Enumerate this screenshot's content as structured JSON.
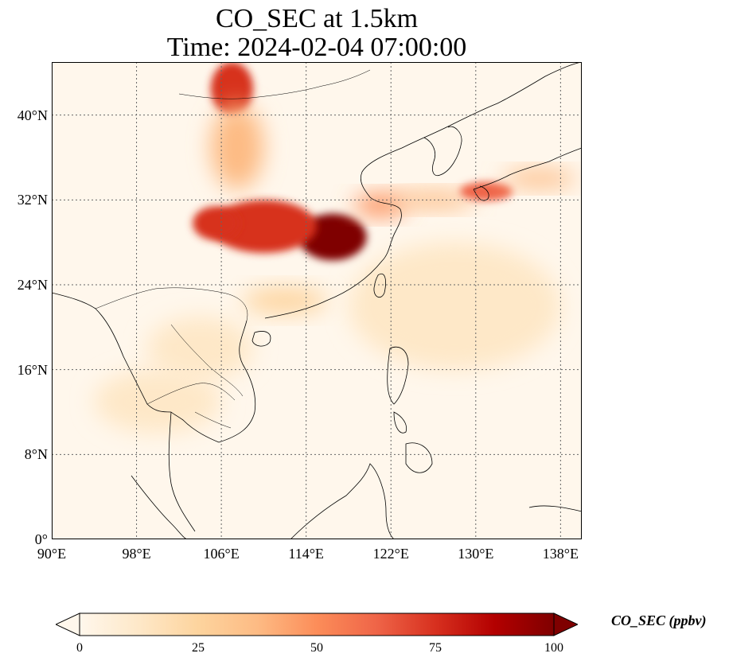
{
  "title": {
    "line1": "CO_SEC at 1.5km",
    "line2": "Time: 2024-02-04 07:00:00"
  },
  "map": {
    "extent": {
      "lon_min": 90,
      "lon_max": 140,
      "lat_min": 0,
      "lat_max": 45
    },
    "gridlines": "dotted",
    "lat_ticks": [
      {
        "value": 0,
        "label": "0°"
      },
      {
        "value": 8,
        "label": "8°N"
      },
      {
        "value": 16,
        "label": "16°N"
      },
      {
        "value": 24,
        "label": "24°N"
      },
      {
        "value": 32,
        "label": "32°N"
      },
      {
        "value": 40,
        "label": "40°N"
      }
    ],
    "lon_ticks": [
      {
        "value": 90,
        "label": "90°E"
      },
      {
        "value": 98,
        "label": "98°E"
      },
      {
        "value": 106,
        "label": "106°E"
      },
      {
        "value": 114,
        "label": "114°E"
      },
      {
        "value": 122,
        "label": "122°E"
      },
      {
        "value": 130,
        "label": "130°E"
      },
      {
        "value": 138,
        "label": "138°E"
      }
    ],
    "field_regions": [
      {
        "name": "central-east-china-core",
        "lon": 116.5,
        "lat": 28.5,
        "rlon": 3.2,
        "rlat": 2.2,
        "value": 100
      },
      {
        "name": "central-china-plume",
        "lon": 110,
        "lat": 29.5,
        "rlon": 5,
        "rlat": 2.5,
        "value": 75
      },
      {
        "name": "sichuan-west",
        "lon": 105.5,
        "lat": 29.8,
        "rlon": 2.2,
        "rlat": 1.6,
        "value": 70
      },
      {
        "name": "north-china-plume-top",
        "lon": 107,
        "lat": 42.5,
        "rlon": 2,
        "rlat": 2.5,
        "value": 70
      },
      {
        "name": "north-china-plume-mid",
        "lon": 107.5,
        "lat": 37,
        "rlon": 2.5,
        "rlat": 4,
        "value": 40
      },
      {
        "name": "yangtze-delta",
        "lon": 121,
        "lat": 31.5,
        "rlon": 2.5,
        "rlat": 1.0,
        "value": 55
      },
      {
        "name": "east-china-sea-band",
        "lon": 126,
        "lat": 32,
        "rlon": 4,
        "rlat": 0.8,
        "value": 35
      },
      {
        "name": "japan-kyushu",
        "lon": 131,
        "lat": 32.8,
        "rlon": 2.5,
        "rlat": 0.9,
        "value": 60
      },
      {
        "name": "japan-honshu-band",
        "lon": 136,
        "lat": 34,
        "rlon": 3.5,
        "rlat": 0.8,
        "value": 35
      },
      {
        "name": "south-china-coast",
        "lon": 112,
        "lat": 22.5,
        "rlon": 4,
        "rlat": 1.2,
        "value": 25
      },
      {
        "name": "taiwan",
        "lon": 120.8,
        "lat": 23.8,
        "rlon": 0.6,
        "rlat": 1.0,
        "value": 30
      },
      {
        "name": "indochina-haze",
        "lon": 104,
        "lat": 18,
        "rlon": 5,
        "rlat": 3,
        "value": 15
      },
      {
        "name": "thailand-haze",
        "lon": 100,
        "lat": 13,
        "rlon": 6,
        "rlat": 3,
        "value": 12
      },
      {
        "name": "west-pacific-haze",
        "lon": 128,
        "lat": 22,
        "rlon": 10,
        "rlat": 6,
        "value": 8
      }
    ]
  },
  "colorbar": {
    "label": "CO_SEC (ppbv)",
    "min": 0,
    "max": 100,
    "ticks": [
      "0",
      "25",
      "50",
      "75",
      "100"
    ],
    "colormap": "OrRd",
    "extend": "both",
    "stops": [
      "#fff7ec",
      "#fee8c8",
      "#fdd49e",
      "#fdbb84",
      "#fc8d59",
      "#ef6548",
      "#d7301f",
      "#b30000",
      "#7f0000"
    ]
  }
}
